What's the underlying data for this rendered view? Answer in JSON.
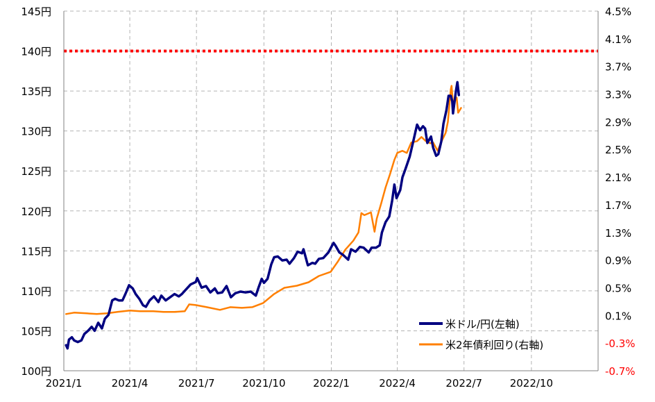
{
  "chart_data": {
    "type": "line",
    "title": "",
    "xlabel": "",
    "ylabel": "",
    "x_tick_labels": [
      "2021/1",
      "2021/4",
      "2021/7",
      "2021/10",
      "2022/1",
      "2022/4",
      "2022/7",
      "2022/10"
    ],
    "x_range": [
      "2021-01-01",
      "2022-12-31"
    ],
    "y_left": {
      "min": 100,
      "max": 145,
      "step": 5,
      "tick_labels": [
        "145円",
        "140円",
        "135円",
        "130円",
        "125円",
        "120円",
        "115円",
        "110円",
        "105円",
        "100円"
      ]
    },
    "y_right": {
      "min": -0.7,
      "max": 4.5,
      "step": 0.4,
      "tick_labels": [
        "4.5%",
        "4.1%",
        "3.7%",
        "3.3%",
        "2.9%",
        "2.5%",
        "2.1%",
        "1.7%",
        "1.3%",
        "0.9%",
        "0.5%",
        "0.1%",
        "-0.3%",
        "-0.7%"
      ],
      "negative_color": "#ff0000"
    },
    "grid": true,
    "reference_line": {
      "axis": "left",
      "value": 140,
      "color": "#ff0000",
      "style": "dotted"
    },
    "legend": {
      "placement": "bottom-right"
    },
    "series": [
      {
        "name": "米ドル/円(左軸)",
        "axis": "left",
        "color": "#000080",
        "points": [
          [
            "2021-01-04",
            103.2
          ],
          [
            "2021-01-06",
            102.8
          ],
          [
            "2021-01-08",
            103.9
          ],
          [
            "2021-01-12",
            104.2
          ],
          [
            "2021-01-15",
            103.8
          ],
          [
            "2021-01-20",
            103.6
          ],
          [
            "2021-01-25",
            103.8
          ],
          [
            "2021-01-29",
            104.6
          ],
          [
            "2021-02-03",
            105.0
          ],
          [
            "2021-02-08",
            105.5
          ],
          [
            "2021-02-12",
            105.0
          ],
          [
            "2021-02-17",
            106.0
          ],
          [
            "2021-02-22",
            105.3
          ],
          [
            "2021-02-26",
            106.5
          ],
          [
            "2021-03-03",
            107.0
          ],
          [
            "2021-03-08",
            108.8
          ],
          [
            "2021-03-12",
            109.0
          ],
          [
            "2021-03-17",
            108.8
          ],
          [
            "2021-03-22",
            108.8
          ],
          [
            "2021-03-26",
            109.6
          ],
          [
            "2021-03-31",
            110.7
          ],
          [
            "2021-04-05",
            110.3
          ],
          [
            "2021-04-09",
            109.6
          ],
          [
            "2021-04-14",
            109.0
          ],
          [
            "2021-04-19",
            108.2
          ],
          [
            "2021-04-23",
            108.0
          ],
          [
            "2021-04-28",
            108.8
          ],
          [
            "2021-05-04",
            109.3
          ],
          [
            "2021-05-10",
            108.6
          ],
          [
            "2021-05-14",
            109.4
          ],
          [
            "2021-05-20",
            108.8
          ],
          [
            "2021-05-26",
            109.2
          ],
          [
            "2021-06-01",
            109.6
          ],
          [
            "2021-06-07",
            109.3
          ],
          [
            "2021-06-11",
            109.6
          ],
          [
            "2021-06-17",
            110.2
          ],
          [
            "2021-06-23",
            110.8
          ],
          [
            "2021-06-30",
            111.1
          ],
          [
            "2021-07-02",
            111.6
          ],
          [
            "2021-07-08",
            110.4
          ],
          [
            "2021-07-14",
            110.6
          ],
          [
            "2021-07-20",
            109.8
          ],
          [
            "2021-07-26",
            110.3
          ],
          [
            "2021-07-30",
            109.7
          ],
          [
            "2021-08-05",
            109.8
          ],
          [
            "2021-08-11",
            110.6
          ],
          [
            "2021-08-17",
            109.2
          ],
          [
            "2021-08-23",
            109.7
          ],
          [
            "2021-08-30",
            109.9
          ],
          [
            "2021-09-06",
            109.8
          ],
          [
            "2021-09-13",
            109.9
          ],
          [
            "2021-09-20",
            109.4
          ],
          [
            "2021-09-24",
            110.5
          ],
          [
            "2021-09-28",
            111.5
          ],
          [
            "2021-10-01",
            111.0
          ],
          [
            "2021-10-06",
            111.5
          ],
          [
            "2021-10-11",
            113.3
          ],
          [
            "2021-10-15",
            114.2
          ],
          [
            "2021-10-20",
            114.3
          ],
          [
            "2021-10-26",
            113.8
          ],
          [
            "2021-11-01",
            113.9
          ],
          [
            "2021-11-05",
            113.4
          ],
          [
            "2021-11-11",
            114.1
          ],
          [
            "2021-11-16",
            114.9
          ],
          [
            "2021-11-22",
            114.7
          ],
          [
            "2021-11-24",
            115.2
          ],
          [
            "2021-11-30",
            113.2
          ],
          [
            "2021-12-06",
            113.5
          ],
          [
            "2021-12-10",
            113.4
          ],
          [
            "2021-12-15",
            114.0
          ],
          [
            "2021-12-21",
            114.1
          ],
          [
            "2021-12-28",
            114.8
          ],
          [
            "2022-01-04",
            116.0
          ],
          [
            "2022-01-07",
            115.6
          ],
          [
            "2022-01-12",
            114.8
          ],
          [
            "2022-01-17",
            114.5
          ],
          [
            "2022-01-24",
            113.9
          ],
          [
            "2022-01-28",
            115.2
          ],
          [
            "2022-02-03",
            114.9
          ],
          [
            "2022-02-09",
            115.5
          ],
          [
            "2022-02-14",
            115.4
          ],
          [
            "2022-02-21",
            114.8
          ],
          [
            "2022-02-25",
            115.4
          ],
          [
            "2022-03-03",
            115.4
          ],
          [
            "2022-03-08",
            115.7
          ],
          [
            "2022-03-11",
            117.3
          ],
          [
            "2022-03-16",
            118.6
          ],
          [
            "2022-03-21",
            119.3
          ],
          [
            "2022-03-25",
            121.3
          ],
          [
            "2022-03-28",
            123.3
          ],
          [
            "2022-03-31",
            121.6
          ],
          [
            "2022-04-05",
            122.6
          ],
          [
            "2022-04-08",
            124.2
          ],
          [
            "2022-04-12",
            125.2
          ],
          [
            "2022-04-18",
            126.8
          ],
          [
            "2022-04-22",
            128.4
          ],
          [
            "2022-04-28",
            130.8
          ],
          [
            "2022-05-02",
            130.1
          ],
          [
            "2022-05-06",
            130.6
          ],
          [
            "2022-05-09",
            130.3
          ],
          [
            "2022-05-12",
            128.5
          ],
          [
            "2022-05-17",
            129.3
          ],
          [
            "2022-05-20",
            127.9
          ],
          [
            "2022-05-24",
            126.9
          ],
          [
            "2022-05-27",
            127.1
          ],
          [
            "2022-05-31",
            128.7
          ],
          [
            "2022-06-03",
            130.9
          ],
          [
            "2022-06-07",
            132.6
          ],
          [
            "2022-06-10",
            134.4
          ],
          [
            "2022-06-13",
            134.4
          ],
          [
            "2022-06-15",
            133.7
          ],
          [
            "2022-06-16",
            132.2
          ],
          [
            "2022-06-20",
            135.0
          ],
          [
            "2022-06-22",
            136.1
          ],
          [
            "2022-06-24",
            134.5
          ]
        ]
      },
      {
        "name": "米2年債利回り(右軸)",
        "axis": "right",
        "color": "#ff7f00",
        "points": [
          [
            "2021-01-04",
            0.12
          ],
          [
            "2021-01-15",
            0.14
          ],
          [
            "2021-02-01",
            0.13
          ],
          [
            "2021-02-15",
            0.12
          ],
          [
            "2021-03-01",
            0.13
          ],
          [
            "2021-03-15",
            0.15
          ],
          [
            "2021-04-01",
            0.17
          ],
          [
            "2021-04-15",
            0.16
          ],
          [
            "2021-05-03",
            0.16
          ],
          [
            "2021-05-17",
            0.15
          ],
          [
            "2021-06-01",
            0.15
          ],
          [
            "2021-06-15",
            0.16
          ],
          [
            "2021-06-21",
            0.26
          ],
          [
            "2021-06-30",
            0.25
          ],
          [
            "2021-07-15",
            0.22
          ],
          [
            "2021-08-02",
            0.18
          ],
          [
            "2021-08-16",
            0.22
          ],
          [
            "2021-09-01",
            0.21
          ],
          [
            "2021-09-15",
            0.22
          ],
          [
            "2021-09-30",
            0.28
          ],
          [
            "2021-10-15",
            0.41
          ],
          [
            "2021-10-29",
            0.5
          ],
          [
            "2021-11-15",
            0.53
          ],
          [
            "2021-12-01",
            0.58
          ],
          [
            "2021-12-15",
            0.67
          ],
          [
            "2021-12-31",
            0.73
          ],
          [
            "2022-01-10",
            0.88
          ],
          [
            "2022-01-20",
            1.05
          ],
          [
            "2022-01-31",
            1.18
          ],
          [
            "2022-02-07",
            1.3
          ],
          [
            "2022-02-11",
            1.58
          ],
          [
            "2022-02-15",
            1.55
          ],
          [
            "2022-02-24",
            1.59
          ],
          [
            "2022-03-01",
            1.31
          ],
          [
            "2022-03-04",
            1.5
          ],
          [
            "2022-03-10",
            1.72
          ],
          [
            "2022-03-16",
            1.95
          ],
          [
            "2022-03-22",
            2.14
          ],
          [
            "2022-03-28",
            2.35
          ],
          [
            "2022-04-01",
            2.45
          ],
          [
            "2022-04-08",
            2.48
          ],
          [
            "2022-04-14",
            2.45
          ],
          [
            "2022-04-20",
            2.6
          ],
          [
            "2022-04-28",
            2.62
          ],
          [
            "2022-05-04",
            2.68
          ],
          [
            "2022-05-10",
            2.62
          ],
          [
            "2022-05-16",
            2.59
          ],
          [
            "2022-05-20",
            2.6
          ],
          [
            "2022-05-26",
            2.48
          ],
          [
            "2022-06-01",
            2.63
          ],
          [
            "2022-06-06",
            2.74
          ],
          [
            "2022-06-09",
            2.9
          ],
          [
            "2022-06-13",
            3.37
          ],
          [
            "2022-06-14",
            3.42
          ],
          [
            "2022-06-16",
            3.15
          ],
          [
            "2022-06-21",
            3.25
          ],
          [
            "2022-06-23",
            3.03
          ],
          [
            "2022-06-27",
            3.1
          ]
        ]
      }
    ]
  }
}
